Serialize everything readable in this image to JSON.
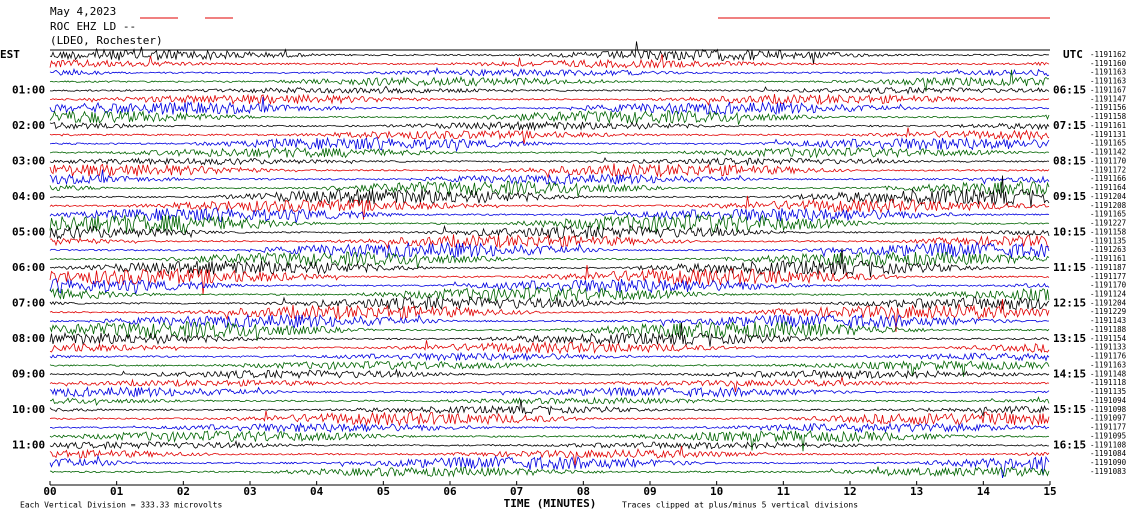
{
  "header": {
    "date": "May 4,2023",
    "station": "ROC EHZ LD --",
    "network": "(LDEO, Rochester)"
  },
  "left_zone": "EST",
  "right_zone": "UTC",
  "left_hours": [
    "01:00",
    "02:00",
    "03:00",
    "04:00",
    "05:00",
    "06:00",
    "07:00",
    "08:00",
    "09:00",
    "10:00",
    "11:00"
  ],
  "right_hours": [
    "06:15",
    "07:15",
    "08:15",
    "09:15",
    "10:15",
    "11:15",
    "12:15",
    "13:15",
    "14:15",
    "15:15",
    "16:15"
  ],
  "row_offsets": [
    "-1191162",
    "-1191160",
    "-1191163",
    "-1191163",
    "-1191167",
    "-1191147",
    "-1191156",
    "-1191158",
    "-1191161",
    "-1191131",
    "-1191165",
    "-1191142",
    "-1191170",
    "-1191172",
    "-1191166",
    "-1191164",
    "-1191204",
    "-1191208",
    "-1191165",
    "-1191227",
    "-1191158",
    "-1191135",
    "-1191263",
    "-1191161",
    "-1191187",
    "-1191177",
    "-1191170",
    "-1191124",
    "-1191204",
    "-1191229",
    "-1191143",
    "-1191188",
    "-1191154",
    "-1191133",
    "-1191176",
    "-1191163",
    "-1191148",
    "-1191118",
    "-1191135",
    "-1191094",
    "-1191098",
    "-1191097",
    "-1191177",
    "-1191095",
    "-1191108",
    "-1191084",
    "-1191090",
    "-1191083"
  ],
  "x_ticks": [
    "00",
    "01",
    "02",
    "03",
    "04",
    "05",
    "06",
    "07",
    "08",
    "09",
    "10",
    "11",
    "12",
    "13",
    "14",
    "15"
  ],
  "x_label": "TIME (MINUTES)",
  "footer_left": "Each Vertical Division =  333.33 microvolts",
  "footer_right": "Traces clipped at plus/minus 5 vertical divisions"
}
